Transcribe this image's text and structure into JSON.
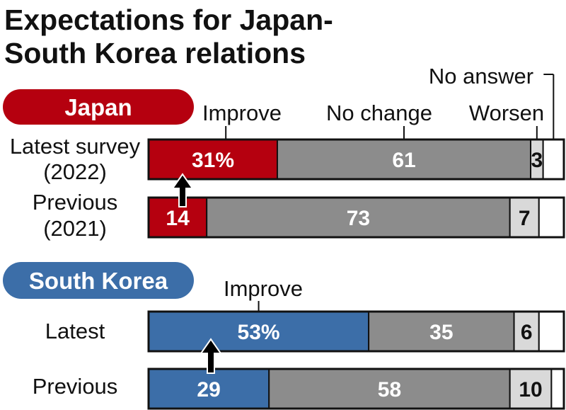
{
  "title_line1": "Expectations for Japan-",
  "title_line2": "South Korea relations",
  "colors": {
    "japan_improve": "#b5000f",
    "korea_improve": "#3c6ea8",
    "no_change": "#8c8c8c",
    "worsen": "#d9d9d9",
    "no_answer": "#ffffff",
    "outline": "#111111"
  },
  "chart_data": {
    "type": "bar",
    "orientation": "horizontal",
    "stacked": true,
    "unit": "%",
    "categories": [
      "Improve",
      "No change",
      "Worsen",
      "No answer"
    ],
    "groups": [
      {
        "name": "Japan",
        "category_labels": {
          "improve": "Improve",
          "no_change": "No change",
          "worsen": "Worsen",
          "no_answer": "No answer"
        },
        "rows": [
          {
            "label_line1": "Latest survey",
            "label_line2": "(2022)",
            "values": [
              31,
              61,
              3,
              5
            ],
            "value_labels": [
              "31%",
              "61",
              "3",
              ""
            ]
          },
          {
            "label_line1": "Previous",
            "label_line2": "(2021)",
            "values": [
              14,
              73,
              7,
              6
            ],
            "value_labels": [
              "14",
              "73",
              "7",
              ""
            ]
          }
        ]
      },
      {
        "name": "South Korea",
        "category_labels": {
          "improve": "Improve"
        },
        "rows": [
          {
            "label_line1": "Latest",
            "label_line2": "",
            "values": [
              53,
              35,
              6,
              6
            ],
            "value_labels": [
              "53%",
              "35",
              "6",
              ""
            ]
          },
          {
            "label_line1": "Previous",
            "label_line2": "",
            "values": [
              29,
              58,
              10,
              3
            ],
            "value_labels": [
              "29",
              "58",
              "10",
              ""
            ]
          }
        ]
      }
    ]
  }
}
